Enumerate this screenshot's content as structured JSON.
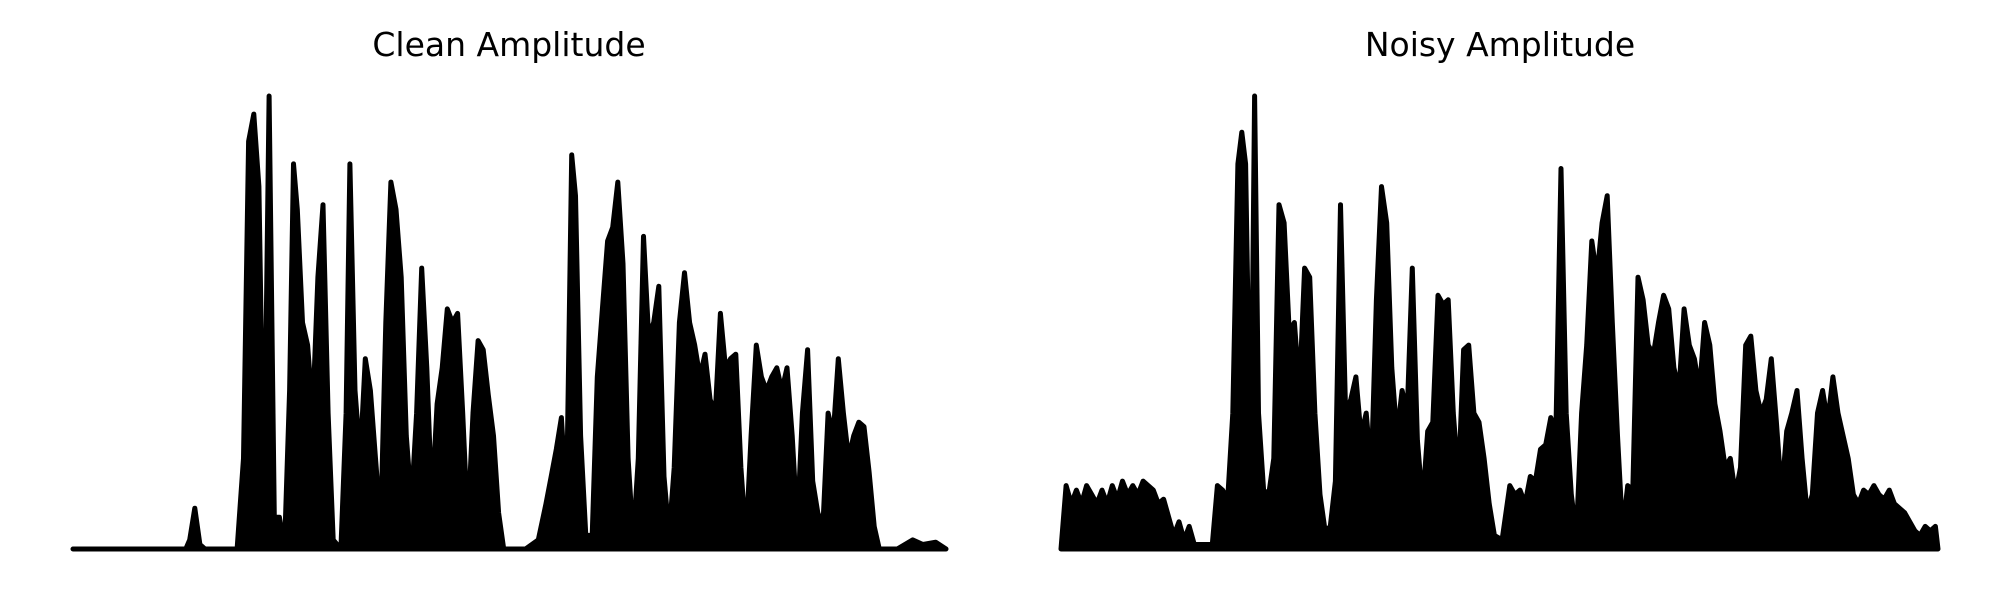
{
  "chart_data": [
    {
      "type": "area",
      "title": "Clean Amplitude",
      "color": "#000000",
      "xlim": [
        0,
        681
      ],
      "ylim": [
        0,
        1
      ],
      "x": [
        0,
        88,
        91,
        95,
        99,
        103,
        128,
        133,
        137,
        141,
        145,
        149,
        153,
        157,
        161,
        165,
        169,
        172,
        175,
        179,
        183,
        187,
        191,
        195,
        199,
        203,
        209,
        213,
        216,
        220,
        224,
        228,
        232,
        236,
        240,
        244,
        248,
        252,
        256,
        260,
        264,
        268,
        272,
        276,
        280,
        284,
        288,
        292,
        296,
        300,
        304,
        308,
        312,
        316,
        320,
        324,
        328,
        332,
        336,
        343,
        353,
        363,
        369,
        373,
        377,
        381,
        385,
        389,
        392,
        396,
        400,
        405,
        409,
        413,
        417,
        421,
        425,
        429,
        433,
        437,
        441,
        445,
        449,
        453,
        457,
        461,
        465,
        469,
        473,
        477,
        481,
        485,
        489,
        493,
        497,
        501,
        505,
        509,
        513,
        517,
        521,
        525,
        529,
        533,
        537,
        541,
        545,
        549,
        553,
        557,
        561,
        565,
        569,
        573,
        577,
        581,
        585,
        589,
        593,
        597,
        601,
        605,
        609,
        613,
        617,
        621,
        625,
        629,
        643,
        655,
        663,
        673,
        681
      ],
      "values": [
        0,
        0,
        0.02,
        0.09,
        0.01,
        0,
        0,
        0.2,
        0.9,
        0.96,
        0.8,
        0.1,
        1.0,
        0.07,
        0.07,
        0,
        0.35,
        0.85,
        0.75,
        0.5,
        0.45,
        0.3,
        0.6,
        0.76,
        0.3,
        0.02,
        0,
        0.3,
        0.85,
        0.35,
        0.2,
        0.42,
        0.35,
        0.2,
        0.05,
        0.5,
        0.81,
        0.75,
        0.6,
        0.25,
        0.1,
        0.3,
        0.62,
        0.4,
        0.1,
        0.32,
        0.4,
        0.53,
        0.5,
        0.52,
        0.3,
        0.05,
        0.3,
        0.46,
        0.44,
        0.34,
        0.25,
        0.08,
        0,
        0,
        0,
        0.02,
        0.1,
        0.16,
        0.22,
        0.29,
        0.1,
        0.87,
        0.78,
        0.25,
        0.03,
        0.03,
        0.38,
        0.53,
        0.68,
        0.71,
        0.81,
        0.63,
        0.2,
        0.02,
        0.2,
        0.69,
        0.47,
        0.5,
        0.58,
        0.16,
        0.03,
        0.18,
        0.5,
        0.61,
        0.5,
        0.45,
        0.38,
        0.43,
        0.33,
        0.3,
        0.52,
        0.4,
        0.42,
        0.43,
        0.18,
        0.02,
        0.25,
        0.45,
        0.38,
        0.35,
        0.38,
        0.4,
        0.35,
        0.4,
        0.25,
        0.05,
        0.3,
        0.44,
        0.15,
        0.08,
        0.05,
        0.3,
        0.25,
        0.42,
        0.3,
        0.2,
        0.25,
        0.28,
        0.27,
        0.17,
        0.05,
        0,
        0,
        0.02,
        0.01,
        0.015,
        0
      ]
    },
    {
      "type": "area",
      "title": "Noisy Amplitude",
      "color": "#000000",
      "xlim": [
        0,
        684
      ],
      "ylim": [
        0,
        1
      ],
      "x": [
        0,
        4,
        8,
        12,
        16,
        20,
        24,
        28,
        32,
        36,
        40,
        44,
        48,
        52,
        56,
        60,
        64,
        68,
        72,
        76,
        80,
        84,
        88,
        92,
        96,
        100,
        104,
        110,
        118,
        122,
        126,
        130,
        134,
        138,
        141,
        144,
        148,
        151,
        154,
        158,
        162,
        166,
        170,
        174,
        178,
        182,
        186,
        190,
        194,
        198,
        202,
        206,
        210,
        214,
        218,
        222,
        226,
        230,
        234,
        238,
        242,
        246,
        250,
        254,
        258,
        262,
        266,
        270,
        274,
        278,
        282,
        286,
        290,
        294,
        298,
        302,
        306,
        310,
        314,
        318,
        322,
        326,
        330,
        334,
        338,
        344,
        350,
        354,
        358,
        362,
        366,
        370,
        374,
        378,
        382,
        386,
        390,
        394,
        398,
        402,
        406,
        410,
        414,
        418,
        422,
        426,
        430,
        434,
        438,
        442,
        446,
        450,
        454,
        458,
        462,
        466,
        470,
        474,
        478,
        482,
        486,
        490,
        494,
        498,
        502,
        506,
        510,
        514,
        518,
        522,
        526,
        530,
        534,
        538,
        542,
        546,
        550,
        554,
        558,
        562,
        566,
        570,
        574,
        578,
        582,
        586,
        590,
        594,
        598,
        602,
        606,
        610,
        614,
        618,
        622,
        626,
        630,
        634,
        638,
        642,
        646,
        650,
        654,
        658,
        662,
        666,
        670,
        674,
        678,
        682,
        684
      ],
      "values": [
        0,
        0.14,
        0.1,
        0.13,
        0.1,
        0.14,
        0.12,
        0.1,
        0.13,
        0.1,
        0.14,
        0.11,
        0.15,
        0.12,
        0.14,
        0.12,
        0.15,
        0.14,
        0.13,
        0.1,
        0.11,
        0.07,
        0.03,
        0.06,
        0.02,
        0.05,
        0.01,
        0.01,
        0.01,
        0.14,
        0.13,
        0.11,
        0.3,
        0.85,
        0.92,
        0.85,
        0.15,
        1.0,
        0.3,
        0.13,
        0.12,
        0.2,
        0.76,
        0.72,
        0.48,
        0.5,
        0.35,
        0.62,
        0.6,
        0.3,
        0.12,
        0.04,
        0.05,
        0.15,
        0.76,
        0.3,
        0.33,
        0.38,
        0.25,
        0.3,
        0.17,
        0.55,
        0.8,
        0.72,
        0.4,
        0.25,
        0.35,
        0.3,
        0.62,
        0.24,
        0.1,
        0.26,
        0.28,
        0.56,
        0.54,
        0.55,
        0.3,
        0.15,
        0.44,
        0.45,
        0.3,
        0.28,
        0.2,
        0.1,
        0.03,
        0.02,
        0.14,
        0.12,
        0.13,
        0.1,
        0.16,
        0.15,
        0.22,
        0.23,
        0.29,
        0.26,
        0.84,
        0.3,
        0.12,
        0.03,
        0.3,
        0.45,
        0.68,
        0.6,
        0.72,
        0.78,
        0.5,
        0.25,
        0.04,
        0.14,
        0.13,
        0.6,
        0.55,
        0.45,
        0.43,
        0.5,
        0.56,
        0.53,
        0.4,
        0.35,
        0.53,
        0.45,
        0.42,
        0.35,
        0.5,
        0.45,
        0.32,
        0.26,
        0.18,
        0.2,
        0.12,
        0.18,
        0.45,
        0.47,
        0.35,
        0.3,
        0.33,
        0.42,
        0.28,
        0.12,
        0.26,
        0.3,
        0.35,
        0.2,
        0.08,
        0.12,
        0.3,
        0.35,
        0.28,
        0.38,
        0.3,
        0.25,
        0.2,
        0.12,
        0.1,
        0.13,
        0.12,
        0.14,
        0.12,
        0.11,
        0.13,
        0.1,
        0.09,
        0.08,
        0.06,
        0.04,
        0.03,
        0.05,
        0.04,
        0.05,
        0
      ]
    }
  ]
}
